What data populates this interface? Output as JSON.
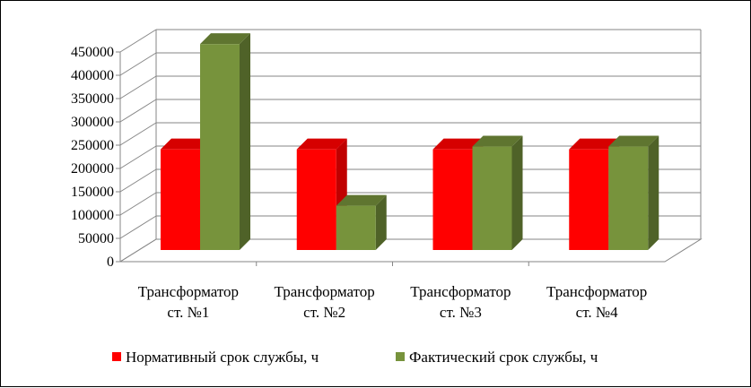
{
  "chart_data": {
    "type": "bar",
    "categories": [
      [
        "Трансформатор",
        "ст. №1"
      ],
      [
        "Трансформатор",
        "ст. №2"
      ],
      [
        "Трансформатор",
        "ст. №3"
      ],
      [
        "Трансформатор",
        "ст. №4"
      ]
    ],
    "series": [
      {
        "name": "Нормативный срок службы, ч",
        "values": [
          216000,
          216000,
          216000,
          216000
        ],
        "color": "#ff0000",
        "side_color": "#c00000",
        "top_color": "#d60000"
      },
      {
        "name": "Фактический срок службы, ч",
        "values": [
          442000,
          95000,
          222000,
          222000
        ],
        "color": "#77933c",
        "side_color": "#4f6228",
        "top_color": "#5f7530"
      }
    ],
    "yticks": [
      0,
      50000,
      100000,
      150000,
      200000,
      250000,
      300000,
      350000,
      400000,
      450000
    ],
    "ylim": [
      0,
      450000
    ],
    "grid": true,
    "legend_position": "bottom",
    "three_d": true
  }
}
